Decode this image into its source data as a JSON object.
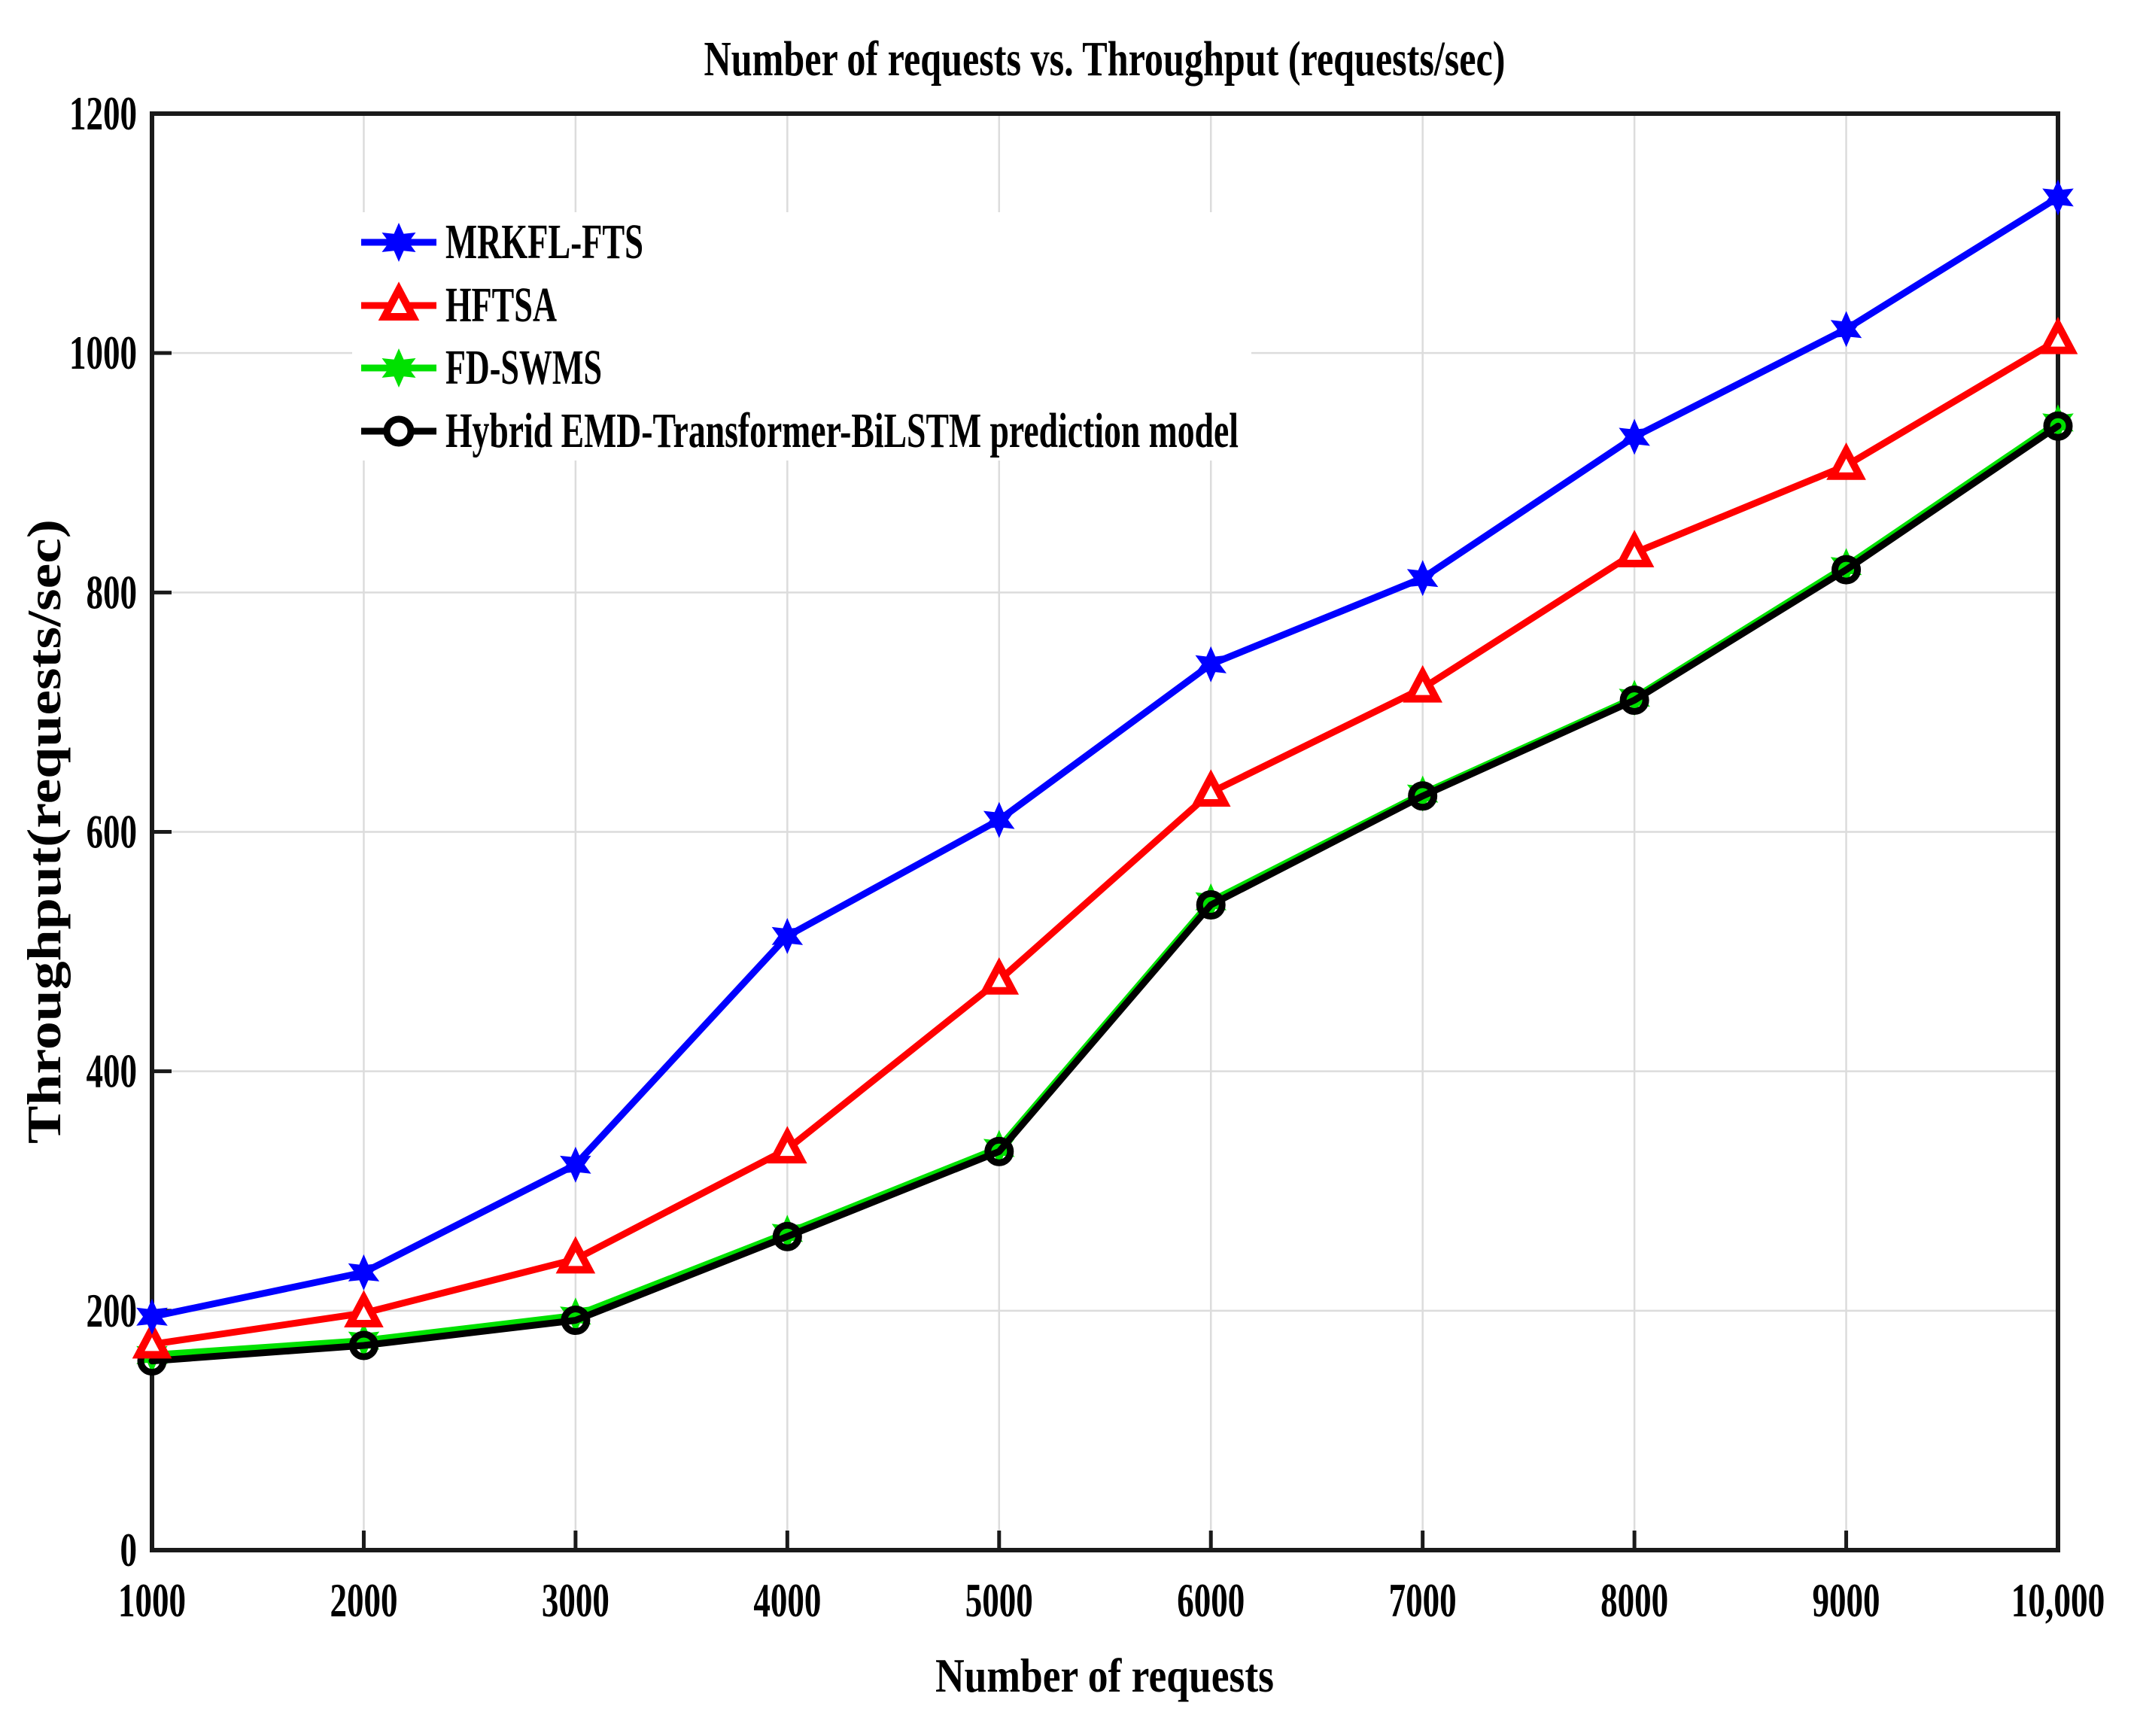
{
  "chart_data": {
    "type": "line",
    "title": "Number of requests vs. Throughput (requests/sec)",
    "xlabel": "Number of requests",
    "ylabel": "Throughput(requests/sec)",
    "xlim": [
      1000,
      10000
    ],
    "ylim": [
      0,
      1200
    ],
    "x": [
      1000,
      2000,
      3000,
      4000,
      5000,
      6000,
      7000,
      8000,
      9000,
      10000
    ],
    "xticklabels": [
      "1000",
      "2000",
      "3000",
      "4000",
      "5000",
      "6000",
      "7000",
      "8000",
      "9000",
      "10,000"
    ],
    "yticks": [
      0,
      200,
      400,
      600,
      800,
      1000,
      1200
    ],
    "grid": true,
    "legend_position": "upper-left-inside",
    "series": [
      {
        "name": "MRKFL-FTS",
        "color": "#0000ff",
        "marker": "hexagram",
        "values": [
          195,
          232,
          322,
          513,
          610,
          740,
          812,
          930,
          1020,
          1130
        ]
      },
      {
        "name": "HFTSA",
        "color": "#ff0000",
        "marker": "triangle-up",
        "values": [
          172,
          198,
          243,
          335,
          476,
          633,
          720,
          833,
          906,
          1011
        ]
      },
      {
        "name": "FD-SWMS",
        "color": "#00e100",
        "marker": "hexagram",
        "values": [
          163,
          175,
          196,
          265,
          336,
          542,
          632,
          712,
          822,
          942
        ]
      },
      {
        "name": "Hybrid EMD-Transformer-BiLSTM prediction model",
        "color": "#000000",
        "marker": "circle",
        "values": [
          158,
          171,
          192,
          262,
          333,
          539,
          630,
          710,
          819,
          939
        ]
      }
    ],
    "colors": {
      "grid": "#dcdcdc",
      "axis": "#1a1a1a",
      "text": "#000000",
      "background": "#ffffff"
    }
  }
}
